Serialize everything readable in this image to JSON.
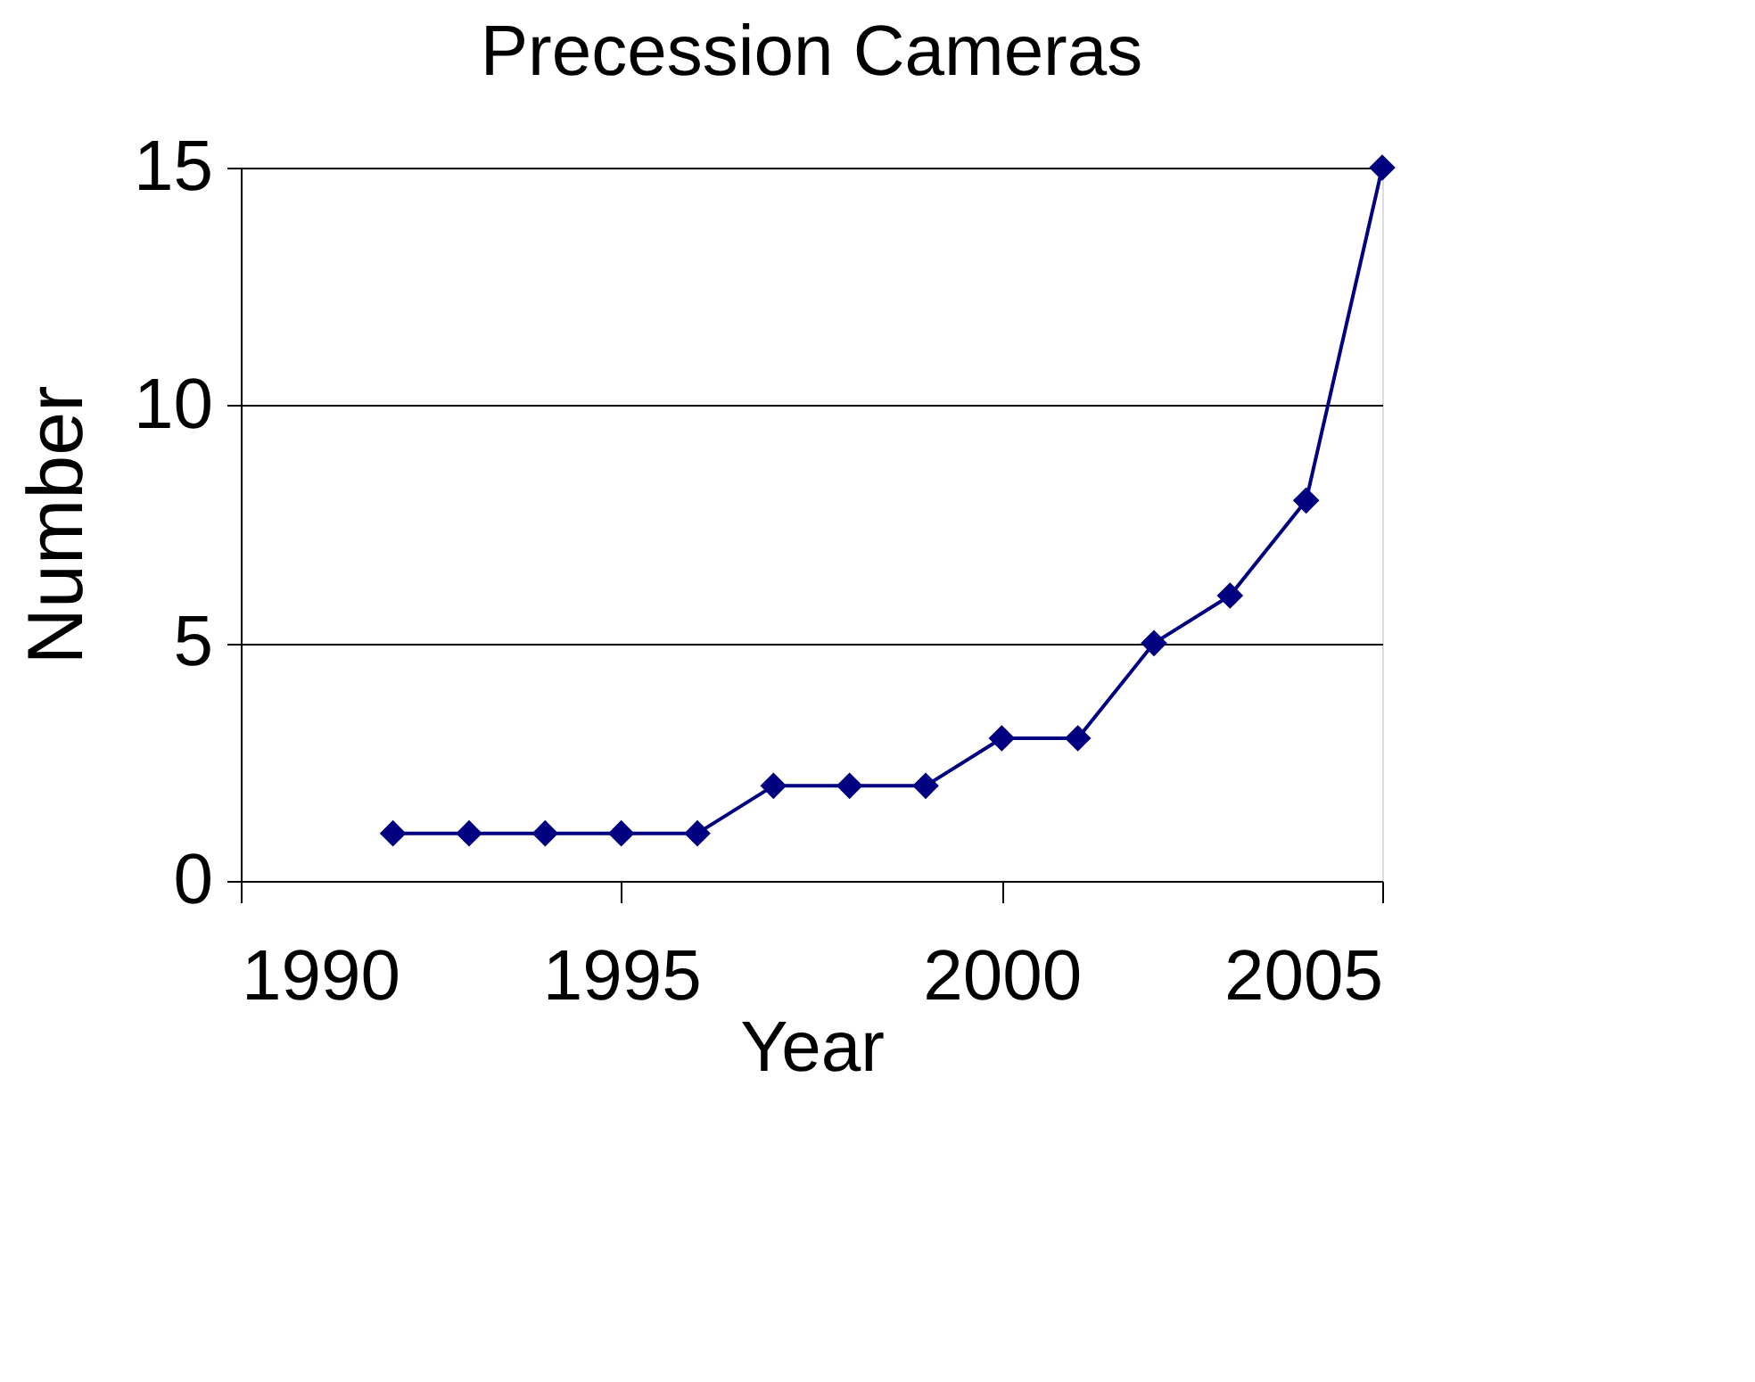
{
  "chart_data": {
    "type": "line",
    "title": "Precession Cameras",
    "xlabel": "Year",
    "ylabel": "Number",
    "x": [
      1992,
      1993,
      1994,
      1995,
      1996,
      1997,
      1998,
      1999,
      2000,
      2001,
      2002,
      2003,
      2004,
      2005
    ],
    "series": [
      {
        "color": "#000080",
        "values": [
          1,
          1,
          1,
          1,
          1,
          2,
          2,
          2,
          3,
          3,
          5,
          6,
          8,
          15
        ]
      }
    ],
    "xlim": [
      1990,
      2005
    ],
    "xticks": [
      1990,
      1995,
      2000,
      2005
    ],
    "ylim": [
      0,
      15
    ],
    "yticks": [
      0,
      5,
      10,
      15
    ],
    "grid": "y",
    "marker": "diamond",
    "line_style": "solid"
  }
}
